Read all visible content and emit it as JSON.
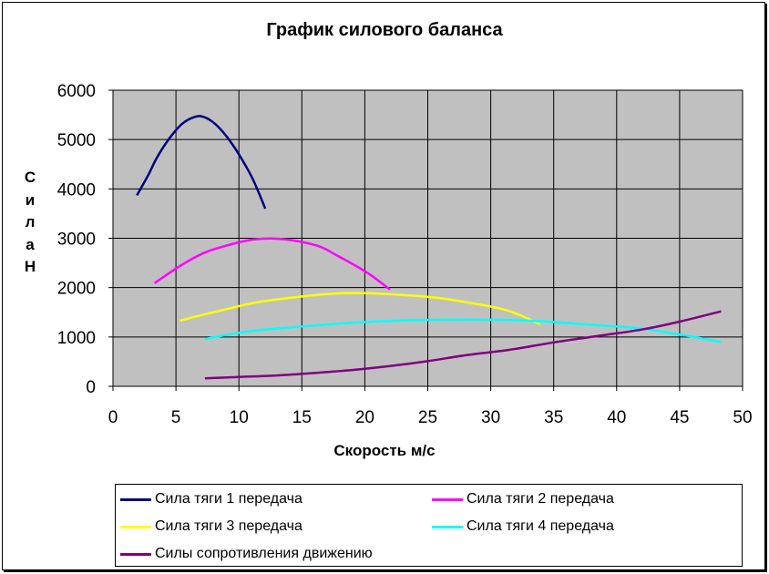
{
  "chart_data": {
    "type": "line",
    "title": "График силового баланса",
    "xlabel": "Скорость м/с",
    "ylabel": "С и л а Н",
    "xlim": [
      0,
      50
    ],
    "ylim": [
      0,
      6000
    ],
    "xticks": [
      0,
      5,
      10,
      15,
      20,
      25,
      30,
      35,
      40,
      45,
      50
    ],
    "yticks": [
      0,
      1000,
      2000,
      3000,
      4000,
      5000,
      6000
    ],
    "grid": true,
    "plot_background": "#c0c0c0",
    "legend_position": "bottom",
    "series": [
      {
        "name": "Сила тяги 1 передача",
        "color": "#000080",
        "x": [
          1.9,
          2.8,
          3.5,
          4.5,
          5.5,
          6.5,
          7.2,
          8.1,
          9.0,
          10.0,
          11.1,
          12.1
        ],
        "y": [
          3870,
          4280,
          4640,
          5030,
          5320,
          5460,
          5460,
          5320,
          5070,
          4700,
          4200,
          3600
        ]
      },
      {
        "name": "Сила тяги 2 передача",
        "color": "#ff00ff",
        "x": [
          3.3,
          5.4,
          7.3,
          9.3,
          11.3,
          13.6,
          16.2,
          17.8,
          20.2,
          22.0
        ],
        "y": [
          2090,
          2450,
          2710,
          2870,
          2980,
          2980,
          2850,
          2650,
          2300,
          1960
        ]
      },
      {
        "name": "Сила тяги 3 передача",
        "color": "#ffff00",
        "x": [
          5.3,
          8.3,
          11.2,
          14.0,
          17.0,
          19.5,
          22.4,
          25.8,
          28.6,
          31.4,
          33.9
        ],
        "y": [
          1330,
          1520,
          1690,
          1790,
          1870,
          1890,
          1860,
          1790,
          1680,
          1530,
          1260
        ]
      },
      {
        "name": "Сила тяги 4 передача",
        "color": "#00ffff",
        "x": [
          7.3,
          10.7,
          14.5,
          18.5,
          22.5,
          26.3,
          30.4,
          34.5,
          38.3,
          42.0,
          45.4,
          48.3
        ],
        "y": [
          960,
          1110,
          1200,
          1280,
          1330,
          1350,
          1350,
          1310,
          1240,
          1170,
          1030,
          900
        ]
      },
      {
        "name": "Силы сопротивления движению",
        "color": "#800080",
        "x": [
          7.3,
          10.0,
          13.0,
          16.0,
          19.0,
          22.0,
          25.0,
          28.0,
          31.5,
          35.0,
          38.5,
          42.0,
          45.0,
          48.3
        ],
        "y": [
          160,
          190,
          220,
          270,
          330,
          410,
          510,
          630,
          740,
          890,
          1020,
          1150,
          1310,
          1520
        ]
      }
    ]
  }
}
